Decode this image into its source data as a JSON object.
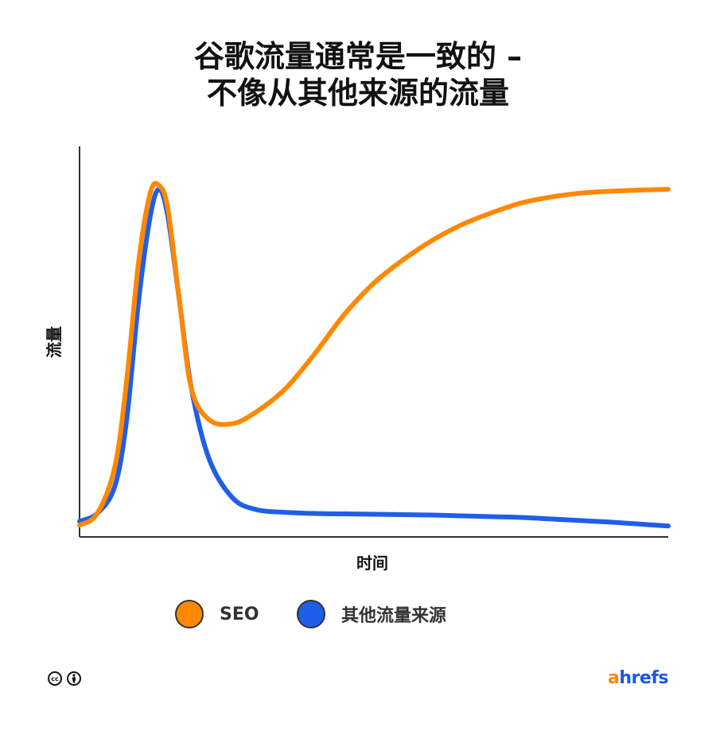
{
  "chart_data": {
    "type": "line",
    "title_lines": [
      "谷歌流量通常是一致的 –",
      "不像从其他来源的流量"
    ],
    "xlabel": "时间",
    "ylabel": "流量",
    "x": [
      0,
      3,
      6,
      8,
      10,
      12,
      13.5,
      15,
      17,
      19,
      22,
      26,
      30,
      35,
      40,
      45,
      50,
      55,
      60,
      65,
      70,
      75,
      80,
      85,
      90,
      95,
      100
    ],
    "series": [
      {
        "name": "SEO",
        "color": "#ff8800",
        "values": [
          3,
          6,
          18,
          40,
          70,
          88,
          90,
          84,
          60,
          38,
          30,
          29,
          32,
          38,
          47,
          57,
          65,
          71,
          76,
          80,
          83,
          85.5,
          87,
          88,
          88.5,
          88.8,
          89
        ]
      },
      {
        "name": "其他流量来源",
        "color": "#1f5ee8",
        "values": [
          4,
          6,
          13,
          30,
          60,
          82,
          89,
          82,
          60,
          38,
          20,
          10,
          7,
          6.3,
          6,
          5.9,
          5.8,
          5.7,
          5.6,
          5.4,
          5.2,
          5,
          4.6,
          4.2,
          3.8,
          3.3,
          2.8
        ]
      }
    ],
    "xlim": [
      0,
      100
    ],
    "ylim": [
      0,
      100
    ],
    "show_ticks": false,
    "grid": false,
    "legend_position": "bottom"
  },
  "legend": [
    {
      "label": "SEO",
      "color": "#ff8800"
    },
    {
      "label": "其他流量来源",
      "color": "#1f5ee8"
    }
  ],
  "footer": {
    "license_icons": [
      "cc-icon",
      "attribution-icon"
    ],
    "cc_text": "cc",
    "brand_a": "a",
    "brand_rest": "hrefs"
  }
}
